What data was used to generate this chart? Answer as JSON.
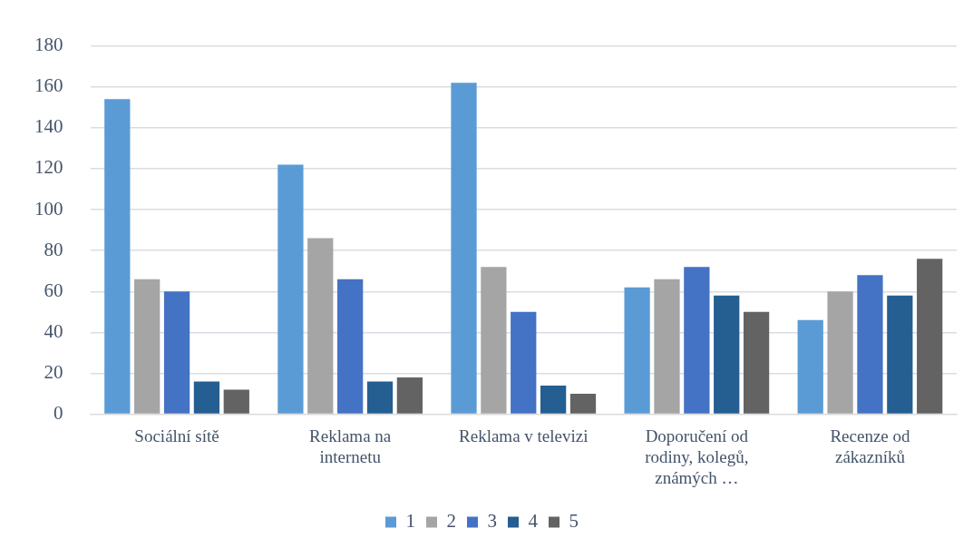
{
  "chart_data": {
    "type": "bar",
    "categories": [
      "Sociální sítě",
      "Reklama na internetu",
      "Reklama v televizi",
      "Doporučení od rodiny, kolegů, známých …",
      "Recenze od zákazníků"
    ],
    "series": [
      {
        "name": "1",
        "color": "#5b9bd5",
        "values": [
          154,
          122,
          162,
          62,
          46
        ]
      },
      {
        "name": "2",
        "color": "#a5a5a5",
        "values": [
          66,
          86,
          72,
          66,
          60
        ]
      },
      {
        "name": "3",
        "color": "#4472c4",
        "values": [
          60,
          66,
          50,
          72,
          68
        ]
      },
      {
        "name": "4",
        "color": "#255e91",
        "values": [
          16,
          16,
          14,
          58,
          58
        ]
      },
      {
        "name": "5",
        "color": "#636363",
        "values": [
          12,
          18,
          10,
          50,
          76
        ]
      }
    ],
    "ylim": [
      0,
      180
    ],
    "yticks": [
      0,
      20,
      40,
      60,
      80,
      100,
      120,
      140,
      160,
      180
    ],
    "grid": "y",
    "legend": "bottom"
  }
}
